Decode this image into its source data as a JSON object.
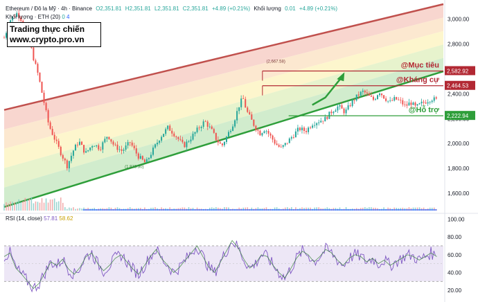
{
  "header": {
    "symbol": "Ethereum / Đô la Mỹ · 4h · Binance",
    "open": "O2,351.81",
    "high": "H2,351.81",
    "low": "L2,351.81",
    "close": "C2,351.81",
    "change": "+4.89 (+0.21%)",
    "volume_label": "Khối lượng",
    "volume_value": "0.01",
    "volume_change": "+4.89 (+0.21%)",
    "volume_ma_label": "Khối lượng · ETH (20)",
    "volume_ma_v1": "0",
    "volume_ma_v2": "4"
  },
  "watermark": {
    "line1": "Trading thực chiến",
    "line2": "www.crypto.pro.vn"
  },
  "annotations": {
    "target": "@Mục tiêu",
    "resistance": "@Kháng cự",
    "support": "@Hỗ trợ",
    "peak_label": "(2,667.58)",
    "trough_label": "(1,813.30)"
  },
  "rsi": {
    "label": "RSI (14, close)",
    "value1": "57.81",
    "value2": "58.62"
  },
  "colors": {
    "up": "#26a69a",
    "down": "#ef5350",
    "channel_top": "#c0504d",
    "channel_bottom": "#2e9e3a",
    "level_red": "#b22833",
    "level_green": "#2e9e3a",
    "rsi_line": "#7e57c2"
  },
  "chart_data": [
    {
      "type": "candlestick",
      "title": "Ethereum / Đô la Mỹ · 4h · Binance",
      "ylim": [
        1450,
        3120
      ],
      "yticks": [
        1600,
        1800,
        2000,
        2200,
        2400,
        2600,
        2800,
        3000
      ],
      "ytick_labels": [
        "1,600.00",
        "1,800.00",
        "2,000.00",
        "2,200.00",
        "2,400.00",
        "2,600.00",
        "2,800.00",
        "3,000.00"
      ],
      "price_path": [
        [
          0,
          2850
        ],
        [
          5,
          3000
        ],
        [
          10,
          3050
        ],
        [
          14,
          2980
        ],
        [
          18,
          2900
        ],
        [
          22,
          2700
        ],
        [
          26,
          2550
        ],
        [
          30,
          2350
        ],
        [
          34,
          2150
        ],
        [
          38,
          2050
        ],
        [
          43,
          1930
        ],
        [
          48,
          1820
        ],
        [
          53,
          1950
        ],
        [
          57,
          2020
        ],
        [
          62,
          1920
        ],
        [
          68,
          2000
        ],
        [
          73,
          1960
        ],
        [
          79,
          2070
        ],
        [
          84,
          1980
        ],
        [
          90,
          1940
        ],
        [
          96,
          2010
        ],
        [
          102,
          1900
        ],
        [
          108,
          1840
        ],
        [
          113,
          1940
        ],
        [
          119,
          2050
        ],
        [
          125,
          2130
        ],
        [
          131,
          2060
        ],
        [
          137,
          1980
        ],
        [
          142,
          2040
        ],
        [
          148,
          2120
        ],
        [
          153,
          2180
        ],
        [
          158,
          2110
        ],
        [
          162,
          2030
        ],
        [
          166,
          1980
        ],
        [
          170,
          2060
        ],
        [
          175,
          2170
        ],
        [
          179,
          2300
        ],
        [
          182,
          2370
        ],
        [
          185,
          2260
        ],
        [
          188,
          2200
        ],
        [
          191,
          2140
        ],
        [
          195,
          2080
        ],
        [
          199,
          2120
        ],
        [
          203,
          2060
        ],
        [
          207,
          2000
        ],
        [
          211,
          1960
        ],
        [
          215,
          2000
        ],
        [
          220,
          2060
        ],
        [
          225,
          2120
        ],
        [
          230,
          2100
        ],
        [
          235,
          2160
        ],
        [
          240,
          2180
        ],
        [
          245,
          2200
        ],
        [
          250,
          2260
        ],
        [
          255,
          2300
        ],
        [
          260,
          2250
        ],
        [
          265,
          2330
        ],
        [
          270,
          2390
        ],
        [
          274,
          2420
        ],
        [
          278,
          2380
        ],
        [
          282,
          2350
        ],
        [
          286,
          2420
        ],
        [
          290,
          2370
        ],
        [
          294,
          2330
        ],
        [
          298,
          2360
        ],
        [
          302,
          2340
        ],
        [
          306,
          2300
        ],
        [
          310,
          2330
        ],
        [
          314,
          2290
        ],
        [
          318,
          2320
        ],
        [
          322,
          2340
        ],
        [
          326,
          2360
        ],
        [
          330,
          2350
        ]
      ],
      "channel": {
        "upper": [
          [
            0,
            2270
          ],
          [
            335,
            3120
          ]
        ],
        "lower": [
          [
            0,
            1490
          ],
          [
            335,
            2580
          ]
        ]
      },
      "levels": [
        {
          "name": "Mục tiêu",
          "value": 2582.92,
          "label": "2,582.92"
        },
        {
          "name": "Kháng cự",
          "value": 2464.53,
          "label": "2,464.53"
        },
        {
          "name": "Hỗ trợ",
          "value": 2222.94,
          "label": "2,222.94"
        }
      ],
      "peak": 2667.58,
      "trough": 1813.3
    },
    {
      "type": "line",
      "title": "RSI (14, close)",
      "ylim": [
        10,
        105
      ],
      "yticks": [
        20,
        40,
        60,
        80,
        100
      ],
      "ytick_labels": [
        "20.00",
        "40.00",
        "60.00",
        "80.00",
        "100.00"
      ],
      "band": [
        30,
        70
      ],
      "midline": 50,
      "values": [
        58,
        62,
        45,
        38,
        30,
        22,
        28,
        40,
        52,
        48,
        55,
        44,
        38,
        46,
        58,
        62,
        50,
        42,
        48,
        56,
        60,
        52,
        44,
        38,
        48,
        58,
        66,
        55,
        48,
        40,
        46,
        54,
        62,
        70,
        58,
        46,
        40,
        52,
        64,
        76,
        68,
        55,
        45,
        50,
        60,
        58,
        48,
        40,
        34,
        44,
        56,
        64,
        60,
        52,
        58,
        66,
        62,
        54,
        48,
        56,
        60,
        58,
        52,
        56,
        50,
        54,
        48,
        52,
        56,
        60,
        58,
        54,
        58,
        62,
        58
      ],
      "current": [
        57.81,
        58.62
      ]
    }
  ]
}
